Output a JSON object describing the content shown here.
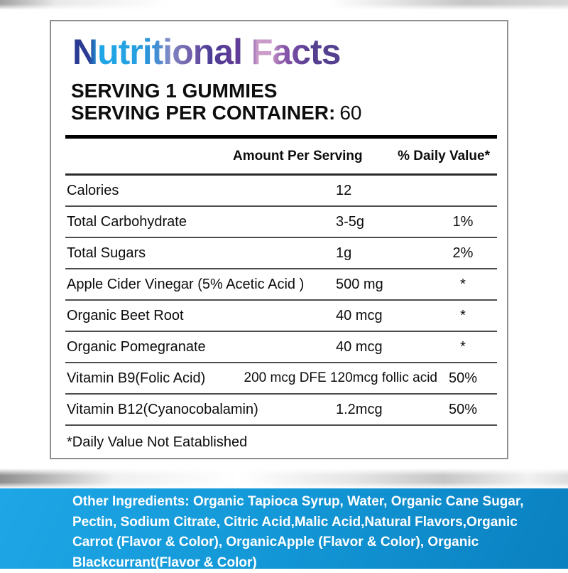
{
  "label": {
    "title": "Nutritional Facts",
    "serving_line1": "SERVING 1 GUMMIES",
    "serving_line2_label": "SERVING PER CONTAINER:",
    "serving_line2_value": "60",
    "table": {
      "header_amount": "Amount Per Serving",
      "header_dv": "% Daily Value*",
      "rows": [
        {
          "name": "Calories",
          "amount": "12",
          "dv": ""
        },
        {
          "name": "Total Carbohydrate",
          "amount": "3-5g",
          "dv": "1%"
        },
        {
          "name": "Total Sugars",
          "amount": "1g",
          "dv": "2%"
        },
        {
          "name": "Apple Cider Vinegar (5% Acetic Acid )",
          "amount": "500 mg",
          "dv": "*"
        },
        {
          "name": "Organic Beet Root",
          "amount": "40 mcg",
          "dv": "*"
        },
        {
          "name": "Organic Pomegranate",
          "amount": "40 mcg",
          "dv": "*"
        },
        {
          "name": "Vitamin B9(Folic Acid)",
          "amount": "200 mcg DFE 120mcg follic acid",
          "dv": "50%"
        },
        {
          "name": "Vitamin B12(Cyanocobalamin)",
          "amount": "1.2mcg",
          "dv": "50%"
        }
      ],
      "footnote": "*Daily Value Not Eatablished"
    },
    "other_ingredients": {
      "lines": [
        "Other Ingredients: Organic Tapioca Syrup, Water, Organic Cane Sugar,",
        "Pectin, Sodium Citrate, Citric Acid,Malic Acid,Natural Flavors,Organic",
        "Carrot (Flavor & Color), OrganicApple (Flavor & Color), Organic",
        "Blackcurrant(Flavor & Color)"
      ]
    },
    "colors": {
      "band_blue_start": "#1ea6e6",
      "band_blue_end": "#0a80c0",
      "title_gradient_start": "#2b3a92",
      "title_gradient_bright": "#1ea6e6",
      "title_gradient_pink": "#cb9cc9",
      "title_gradient_end": "#55408f"
    }
  }
}
